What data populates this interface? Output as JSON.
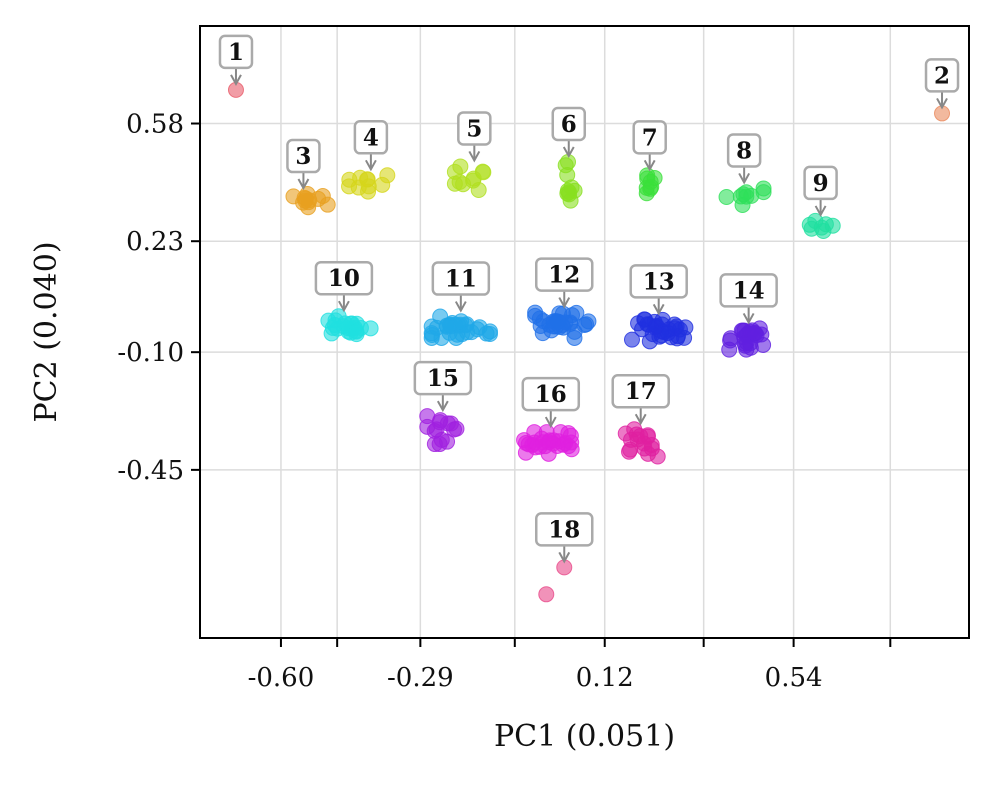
{
  "chart_data": {
    "type": "scatter",
    "xlabel": "PC1 (0.051)",
    "ylabel": "PC2 (0.040)",
    "xlim": [
      -0.78,
      0.93
    ],
    "ylim": [
      -0.95,
      0.87
    ],
    "x_ticks": [
      -0.6,
      -0.29,
      0.12,
      0.54
    ],
    "x_tick_labels": [
      "-0.60",
      "-0.29",
      "0.12",
      "0.54"
    ],
    "x_minor_ticks": [
      -0.475,
      -0.08,
      0.34,
      0.755
    ],
    "y_ticks": [
      0.58,
      0.23,
      -0.1,
      -0.45
    ],
    "y_tick_labels": [
      "0.58",
      "0.23",
      "-0.10",
      "-0.45"
    ],
    "grid": true,
    "clusters": [
      {
        "label": "1",
        "color": "#e85c6a",
        "center": [
          -0.7,
          0.68
        ],
        "spread": [
          0,
          0
        ],
        "points": [
          [
            -0.7,
            0.68
          ]
        ]
      },
      {
        "label": "2",
        "color": "#ea8a5e",
        "center": [
          0.87,
          0.61
        ],
        "spread": [
          0,
          0
        ],
        "points": [
          [
            0.87,
            0.61
          ]
        ]
      },
      {
        "label": "3",
        "color": "#e8a020",
        "center": [
          -0.55,
          0.35
        ],
        "spread": [
          0.05,
          0.03
        ],
        "count": 12
      },
      {
        "label": "4",
        "color": "#d6d61a",
        "center": [
          -0.4,
          0.41
        ],
        "spread": [
          0.045,
          0.03
        ],
        "count": 10
      },
      {
        "label": "5",
        "color": "#b0e020",
        "center": [
          -0.17,
          0.42
        ],
        "spread": [
          0.04,
          0.035
        ],
        "count": 10
      },
      {
        "label": "6",
        "color": "#88e020",
        "center": [
          0.04,
          0.39
        ],
        "spread": [
          0.012,
          0.07
        ],
        "count": 10
      },
      {
        "label": "7",
        "color": "#3ae03a",
        "center": [
          0.22,
          0.4
        ],
        "spread": [
          0.035,
          0.035
        ],
        "count": 8
      },
      {
        "label": "8",
        "color": "#2ee05a",
        "center": [
          0.43,
          0.37
        ],
        "spread": [
          0.04,
          0.03
        ],
        "count": 9
      },
      {
        "label": "9",
        "color": "#20e0a0",
        "center": [
          0.6,
          0.27
        ],
        "spread": [
          0.025,
          0.02
        ],
        "count": 7
      },
      {
        "label": "10",
        "color": "#20e0e0",
        "center": [
          -0.46,
          -0.02
        ],
        "spread": [
          0.055,
          0.025
        ],
        "count": 22
      },
      {
        "label": "11",
        "color": "#20a8e8",
        "center": [
          -0.2,
          -0.02
        ],
        "spread": [
          0.06,
          0.035
        ],
        "count": 30
      },
      {
        "label": "12",
        "color": "#2070e8",
        "center": [
          0.03,
          -0.02
        ],
        "spread": [
          0.06,
          0.035
        ],
        "count": 30
      },
      {
        "label": "13",
        "color": "#2030e0",
        "center": [
          0.24,
          -0.03
        ],
        "spread": [
          0.055,
          0.035
        ],
        "count": 30
      },
      {
        "label": "14",
        "color": "#6020e0",
        "center": [
          0.44,
          -0.06
        ],
        "spread": [
          0.04,
          0.03
        ],
        "count": 25
      },
      {
        "label": "15",
        "color": "#a020e0",
        "center": [
          -0.24,
          -0.33
        ],
        "spread": [
          0.035,
          0.04
        ],
        "count": 14
      },
      {
        "label": "16",
        "color": "#e020e0",
        "center": [
          0.0,
          -0.37
        ],
        "spread": [
          0.055,
          0.03
        ],
        "count": 28
      },
      {
        "label": "17",
        "color": "#e020a0",
        "center": [
          0.2,
          -0.37
        ],
        "spread": [
          0.035,
          0.045
        ],
        "count": 16
      },
      {
        "label": "18",
        "color": "#e84a8a",
        "center": [
          0.03,
          -0.74
        ],
        "spread": [
          0,
          0
        ],
        "points": [
          [
            0.03,
            -0.74
          ],
          [
            -0.01,
            -0.82
          ]
        ]
      }
    ]
  }
}
